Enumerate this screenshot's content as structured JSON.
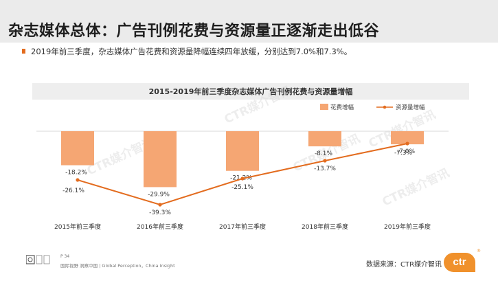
{
  "page": {
    "title": "杂志媒体总体：广告刊例花费与资源量正逐渐走出低谷",
    "summary": "2019年前三季度，杂志媒体广告花费和资源量降幅连续四年放缓，分别达到7.0%和7.3%。",
    "page_number": "P 34",
    "footer_text": "国际视野  洞察中国 | Global Perception，China Insight",
    "source": "数据来源：CTR媒介智讯",
    "logo_text": "ctr",
    "logo_mark": "®",
    "watermark": "CTR媒介智讯"
  },
  "colors": {
    "bar": "#f5a673",
    "line": "#e36c1f",
    "accent": "#e36c1f"
  },
  "chart_data": {
    "type": "bar",
    "title": "2015-2019年前三季度杂志媒体广告刊例花费与资源量增幅",
    "categories": [
      "2015年前三季度",
      "2016年前三季度",
      "2017年前三季度",
      "2018年前三季度",
      "2019年前三季度"
    ],
    "series": [
      {
        "name": "花费增幅",
        "type": "bar",
        "values": [
          -18.2,
          -29.9,
          -21.2,
          -8.1,
          -7.0
        ],
        "labels": [
          "-18.2%",
          "-29.9%",
          "-21.2%",
          "-8.1%",
          "-7.0%"
        ]
      },
      {
        "name": "资源量增幅",
        "type": "line",
        "values": [
          -26.1,
          -39.3,
          -25.1,
          -13.7,
          -7.3
        ],
        "labels": [
          "-26.1%",
          "-39.3%",
          "-25.1%",
          "-13.7%",
          "-7.3%"
        ]
      }
    ],
    "ylim": [
      -45,
      0
    ],
    "grid": false,
    "legend_position": "top-right"
  }
}
